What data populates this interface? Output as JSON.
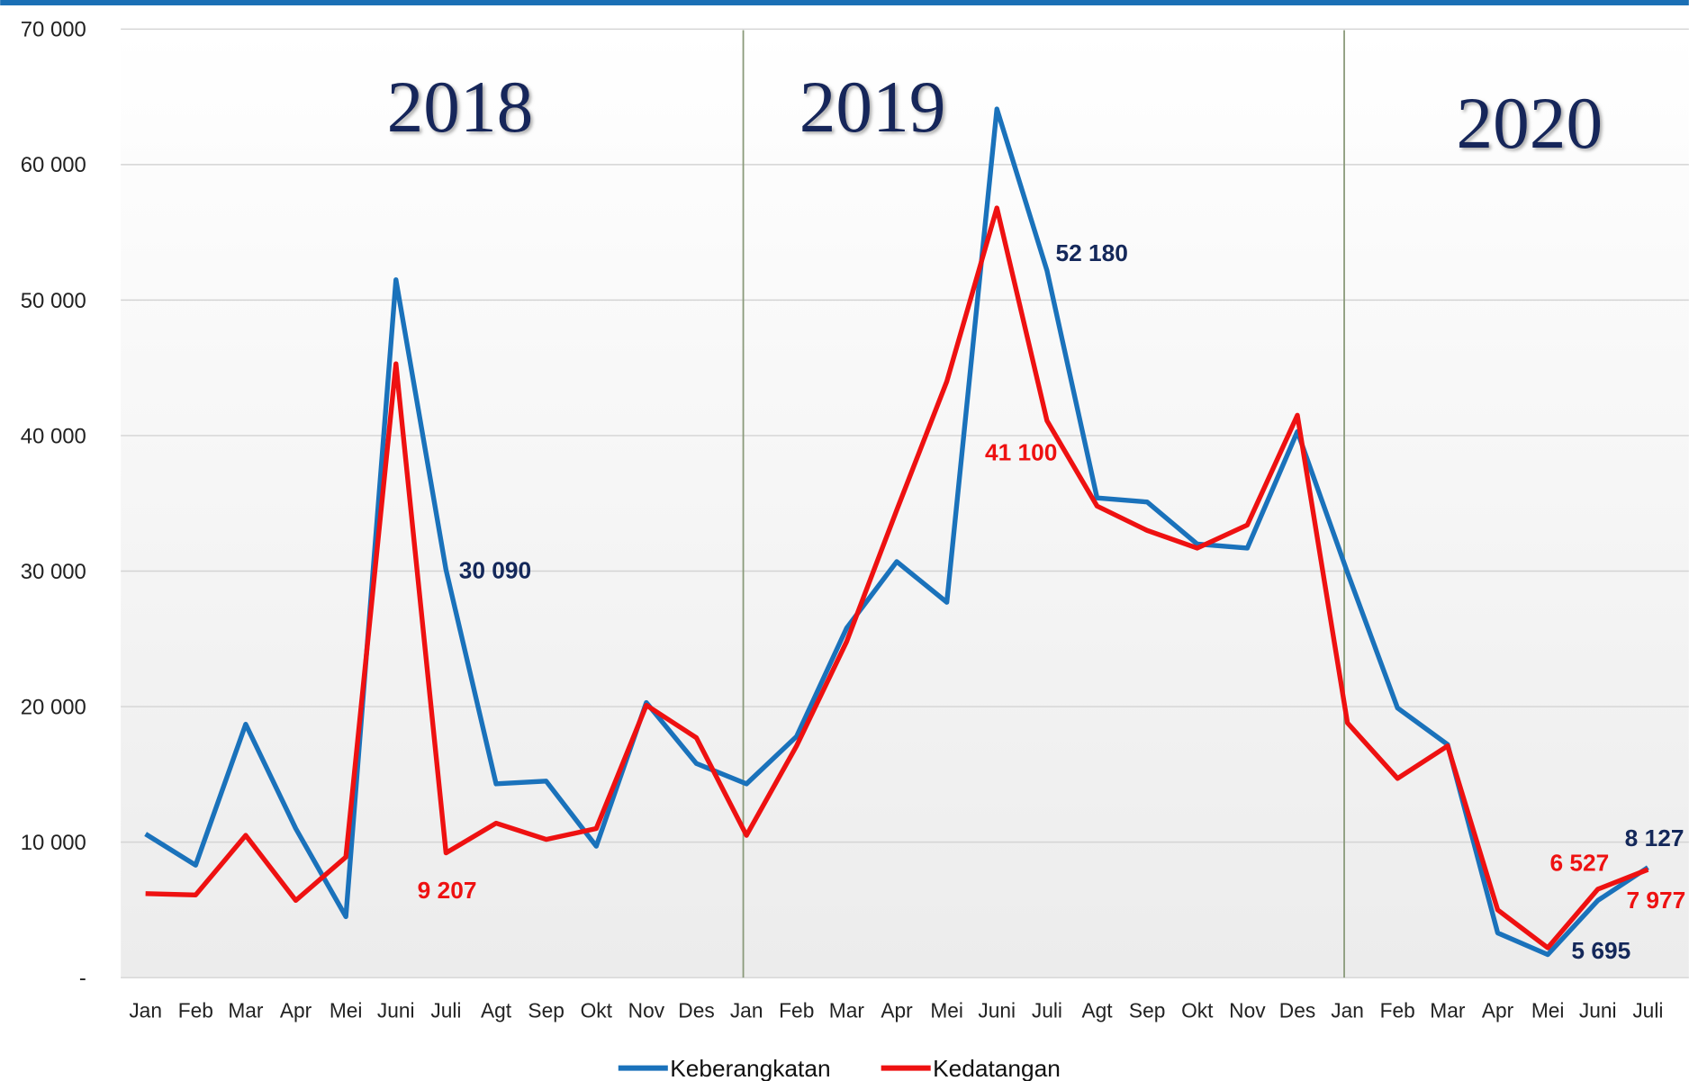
{
  "chart_data": {
    "type": "line",
    "annotations": [
      "2018",
      "2019",
      "2020"
    ],
    "categories": [
      "Jan",
      "Feb",
      "Mar",
      "Apr",
      "Mei",
      "Juni",
      "Juli",
      "Agt",
      "Sep",
      "Okt",
      "Nov",
      "Des",
      "Jan",
      "Feb",
      "Mar",
      "Apr",
      "Mei",
      "Juni",
      "Juli",
      "Agt",
      "Sep",
      "Okt",
      "Nov",
      "Des",
      "Jan",
      "Feb",
      "Mar",
      "Apr",
      "Mei",
      "Juni",
      "Juli"
    ],
    "series": [
      {
        "name": "Keberangkatan",
        "color": "#1a72bb",
        "values": [
          10600,
          8300,
          18700,
          11000,
          4500,
          51500,
          30090,
          14300,
          14500,
          9700,
          20300,
          15800,
          14300,
          17800,
          25800,
          30700,
          27700,
          64100,
          52180,
          35400,
          35100,
          32000,
          31700,
          40300,
          29900,
          19900,
          17200,
          3300,
          1700,
          5695,
          8127
        ],
        "value_labels": [
          null,
          null,
          null,
          null,
          null,
          null,
          "30 090",
          null,
          null,
          null,
          null,
          null,
          null,
          null,
          null,
          null,
          null,
          null,
          "52 180",
          null,
          null,
          null,
          null,
          null,
          null,
          null,
          null,
          null,
          null,
          "5 695",
          "8 127"
        ]
      },
      {
        "name": "Kedatangan",
        "color": "#ee1111",
        "values": [
          6200,
          6100,
          10500,
          5700,
          8900,
          45300,
          9207,
          11400,
          10200,
          11000,
          20100,
          17700,
          10500,
          17100,
          24800,
          34500,
          44000,
          56800,
          41100,
          34800,
          33000,
          31700,
          33400,
          41500,
          18800,
          14700,
          17100,
          5000,
          2200,
          6527,
          7977
        ],
        "value_labels": [
          null,
          null,
          null,
          null,
          null,
          null,
          "9 207",
          null,
          null,
          null,
          null,
          null,
          null,
          null,
          null,
          null,
          null,
          null,
          "41 100",
          null,
          null,
          null,
          null,
          null,
          null,
          null,
          null,
          null,
          null,
          "6 527",
          "7 977"
        ]
      }
    ],
    "ylim": [
      0,
      70000
    ],
    "yticks": [
      {
        "value": 0,
        "label": "-"
      },
      {
        "value": 10000,
        "label": "10 000"
      },
      {
        "value": 20000,
        "label": "20 000"
      },
      {
        "value": 30000,
        "label": "30 000"
      },
      {
        "value": 40000,
        "label": "40 000"
      },
      {
        "value": 50000,
        "label": "50 000"
      },
      {
        "value": 60000,
        "label": "60 000"
      },
      {
        "value": 70000,
        "label": "70 000"
      }
    ],
    "grid": true,
    "legend": "bottom"
  }
}
